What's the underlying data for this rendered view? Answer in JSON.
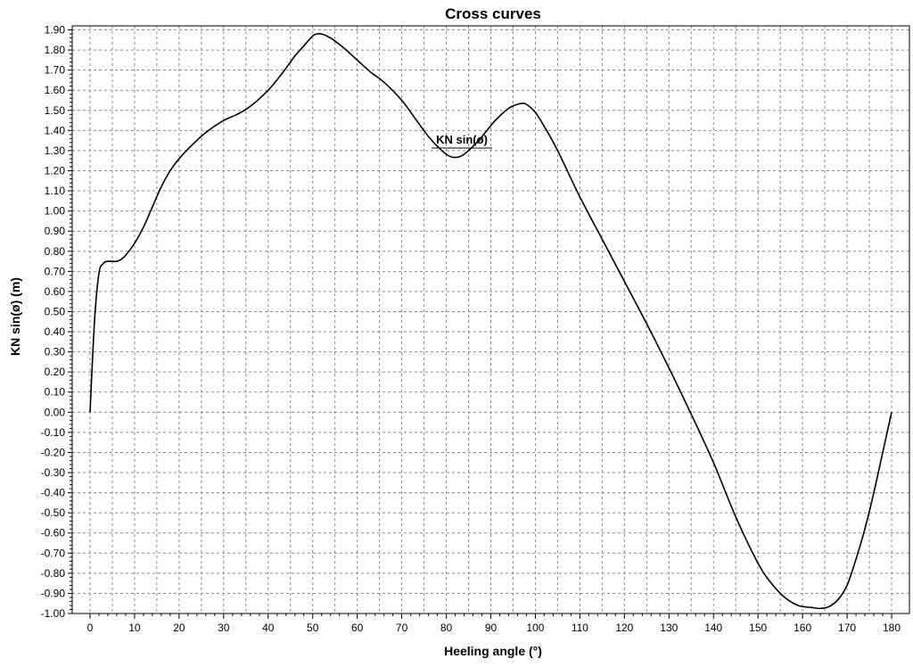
{
  "chart_data": {
    "type": "line",
    "title": "Cross curves",
    "xlabel": "Heeling angle (°)",
    "ylabel": "KN sin(ø) (m)",
    "xlim": [
      -4,
      184
    ],
    "ylim": [
      -1.0,
      1.92
    ],
    "grid": true,
    "x_ticks": [
      0,
      10,
      20,
      30,
      40,
      50,
      60,
      70,
      80,
      90,
      100,
      110,
      120,
      130,
      140,
      150,
      160,
      170,
      180
    ],
    "x_tick_labels": [
      "0",
      "10",
      "20",
      "30",
      "40",
      "50",
      "60",
      "70",
      "80",
      "90",
      "100",
      "110",
      "120",
      "130",
      "140",
      "150",
      "160",
      "170",
      "180"
    ],
    "y_ticks": [
      1.9,
      1.8,
      1.7,
      1.6,
      1.5,
      1.4,
      1.3,
      1.2,
      1.1,
      1.0,
      0.9,
      0.8,
      0.7,
      0.6,
      0.5,
      0.4,
      0.3,
      0.2,
      0.1,
      0.0,
      -0.1,
      -0.2,
      -0.3,
      -0.4,
      -0.5,
      -0.6,
      -0.7,
      -0.8,
      -0.9,
      -1.0
    ],
    "y_tick_labels": [
      "1.90",
      "1.80",
      "1.70",
      "1.60",
      "1.50",
      "1.40",
      "1.30",
      "1.20",
      "1.10",
      "1.00",
      "0.90",
      "0.80",
      "0.70",
      "0.60",
      "0.50",
      "0.40",
      "0.30",
      "0.20",
      "0.10",
      "0.00",
      "-0.10",
      "-0.20",
      "-0.30",
      "-0.40",
      "-0.50",
      "-0.60",
      "-0.70",
      "-0.80",
      "-0.90",
      "-1.00"
    ],
    "annotations": [
      {
        "text": "KN sin(ø)",
        "x": 83.5,
        "y": 1.335
      }
    ],
    "series": [
      {
        "name": "KN sin(ø)",
        "x": [
          0,
          1,
          2,
          3,
          4,
          5,
          6,
          7,
          8,
          10,
          12,
          14,
          16,
          18,
          20,
          23,
          26,
          30,
          33,
          36,
          40,
          43,
          46,
          48,
          50,
          51,
          52,
          54,
          57,
          60,
          63,
          66,
          70,
          73,
          76,
          79,
          81,
          83,
          85,
          88,
          91,
          94,
          96,
          97,
          98,
          100,
          102,
          105,
          110,
          115,
          120,
          125,
          130,
          135,
          140,
          145,
          150,
          153,
          156,
          159,
          162,
          164,
          166,
          168,
          170,
          172,
          174,
          176,
          178,
          180
        ],
        "y": [
          0.0,
          0.45,
          0.69,
          0.74,
          0.75,
          0.75,
          0.75,
          0.76,
          0.78,
          0.84,
          0.92,
          1.02,
          1.12,
          1.2,
          1.26,
          1.33,
          1.39,
          1.45,
          1.48,
          1.52,
          1.6,
          1.68,
          1.77,
          1.82,
          1.87,
          1.88,
          1.88,
          1.86,
          1.81,
          1.75,
          1.69,
          1.64,
          1.55,
          1.46,
          1.37,
          1.3,
          1.27,
          1.27,
          1.3,
          1.37,
          1.45,
          1.51,
          1.53,
          1.535,
          1.53,
          1.49,
          1.42,
          1.3,
          1.07,
          0.86,
          0.65,
          0.44,
          0.22,
          -0.01,
          -0.25,
          -0.52,
          -0.75,
          -0.85,
          -0.92,
          -0.96,
          -0.97,
          -0.975,
          -0.965,
          -0.93,
          -0.86,
          -0.73,
          -0.58,
          -0.4,
          -0.2,
          0.0
        ]
      }
    ]
  }
}
